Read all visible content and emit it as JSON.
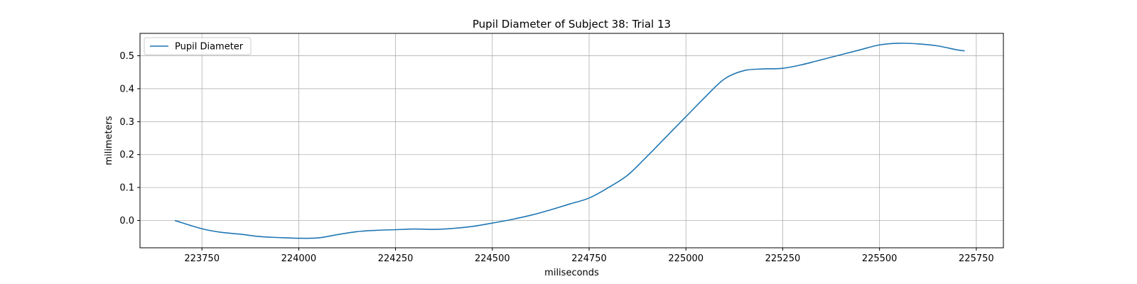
{
  "chart_data": {
    "type": "line",
    "title": "Pupil Diameter of Subject 38: Trial 13",
    "xlabel": "miliseconds",
    "ylabel": "milimeters",
    "xlim": [
      223590,
      225820
    ],
    "ylim": [
      -0.083,
      0.568
    ],
    "xticks": [
      223750,
      224000,
      224250,
      224500,
      224750,
      225000,
      225250,
      225500,
      225750
    ],
    "yticks": [
      0.0,
      0.1,
      0.2,
      0.3,
      0.4,
      0.5
    ],
    "grid": true,
    "legend": "upper-left",
    "series": [
      {
        "name": "Pupil Diameter",
        "color": "#1f77b4",
        "x": [
          223680,
          223720,
          223760,
          223800,
          223850,
          223900,
          223950,
          224000,
          224050,
          224100,
          224150,
          224200,
          224250,
          224300,
          224350,
          224400,
          224450,
          224500,
          224550,
          224600,
          224650,
          224700,
          224750,
          224800,
          224850,
          224900,
          224950,
          225000,
          225050,
          225100,
          225150,
          225200,
          225250,
          225300,
          225350,
          225400,
          225450,
          225500,
          225550,
          225600,
          225650,
          225700,
          225720
        ],
        "y": [
          0.0,
          -0.015,
          -0.028,
          -0.036,
          -0.042,
          -0.049,
          -0.052,
          -0.054,
          -0.053,
          -0.043,
          -0.034,
          -0.03,
          -0.028,
          -0.026,
          -0.027,
          -0.024,
          -0.018,
          -0.008,
          0.003,
          0.016,
          0.032,
          0.05,
          0.068,
          0.1,
          0.138,
          0.195,
          0.255,
          0.315,
          0.375,
          0.43,
          0.455,
          0.46,
          0.462,
          0.473,
          0.488,
          0.503,
          0.518,
          0.533,
          0.538,
          0.536,
          0.53,
          0.518,
          0.515
        ]
      }
    ]
  }
}
